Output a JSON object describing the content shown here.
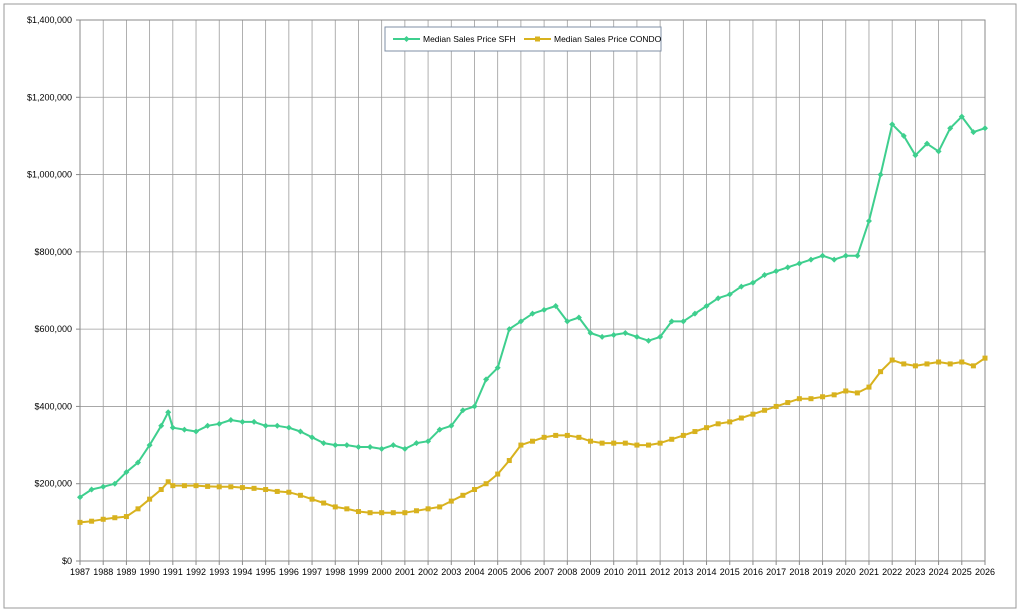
{
  "chart_data": {
    "type": "line",
    "title": "",
    "xlabel": "",
    "ylabel": "",
    "ylim": [
      0,
      1400000
    ],
    "xlim": [
      1987,
      2026
    ],
    "grid": true,
    "legend_position": "top-center",
    "y_ticks": [
      "$0",
      "$200,000",
      "$400,000",
      "$600,000",
      "$800,000",
      "$1,000,000",
      "$1,200,000",
      "$1,400,000"
    ],
    "x_ticks": [
      "1987",
      "1988",
      "1989",
      "1990",
      "1991",
      "1992",
      "1993",
      "1994",
      "1995",
      "1996",
      "1997",
      "1998",
      "1999",
      "2000",
      "2001",
      "2002",
      "2003",
      "2004",
      "2005",
      "2006",
      "2007",
      "2008",
      "2009",
      "2010",
      "2011",
      "2012",
      "2013",
      "2014",
      "2015",
      "2016",
      "2017",
      "2018",
      "2019",
      "2020",
      "2021",
      "2022",
      "2023",
      "2024",
      "2025",
      "2026"
    ],
    "series": [
      {
        "name": "Median Sales Price SFH",
        "color": "#3ecf8e",
        "marker": "diamond",
        "x": [
          1987,
          1987.5,
          1988,
          1988.5,
          1989,
          1989.5,
          1990,
          1990.5,
          1990.8,
          1991,
          1991.5,
          1992,
          1992.5,
          1993,
          1993.5,
          1994,
          1994.5,
          1995,
          1995.5,
          1996,
          1996.5,
          1997,
          1997.5,
          1998,
          1998.5,
          1999,
          1999.5,
          2000,
          2000.5,
          2001,
          2001.5,
          2002,
          2002.5,
          2003,
          2003.5,
          2004,
          2004.5,
          2005,
          2005.5,
          2006,
          2006.5,
          2007,
          2007.5,
          2008,
          2008.5,
          2009,
          2009.5,
          2010,
          2010.5,
          2011,
          2011.5,
          2012,
          2012.5,
          2013,
          2013.5,
          2014,
          2014.5,
          2015,
          2015.5,
          2016,
          2016.5,
          2017,
          2017.5,
          2018,
          2018.5,
          2019,
          2019.5,
          2020,
          2020.5,
          2021,
          2021.5,
          2022,
          2022.5,
          2023,
          2023.5,
          2024,
          2024.5,
          2025,
          2025.5,
          2026
        ],
        "values": [
          165000,
          185000,
          192000,
          200000,
          230000,
          255000,
          300000,
          350000,
          385000,
          345000,
          340000,
          335000,
          350000,
          355000,
          365000,
          360000,
          360000,
          350000,
          350000,
          345000,
          335000,
          320000,
          305000,
          300000,
          300000,
          295000,
          295000,
          290000,
          300000,
          290000,
          305000,
          310000,
          340000,
          350000,
          390000,
          400000,
          470000,
          500000,
          600000,
          620000,
          640000,
          650000,
          660000,
          620000,
          630000,
          590000,
          580000,
          585000,
          590000,
          580000,
          570000,
          580000,
          620000,
          620000,
          640000,
          660000,
          680000,
          690000,
          710000,
          720000,
          740000,
          750000,
          760000,
          770000,
          780000,
          790000,
          780000,
          790000,
          790000,
          880000,
          1000000,
          1130000,
          1100000,
          1050000,
          1080000,
          1060000,
          1120000,
          1150000,
          1110000,
          1120000
        ]
      },
      {
        "name": "Median Sales Price CONDO",
        "color": "#d8b21e",
        "marker": "square",
        "x": [
          1987,
          1987.5,
          1988,
          1988.5,
          1989,
          1989.5,
          1990,
          1990.5,
          1990.8,
          1991,
          1991.5,
          1992,
          1992.5,
          1993,
          1993.5,
          1994,
          1994.5,
          1995,
          1995.5,
          1996,
          1996.5,
          1997,
          1997.5,
          1998,
          1998.5,
          1999,
          1999.5,
          2000,
          2000.5,
          2001,
          2001.5,
          2002,
          2002.5,
          2003,
          2003.5,
          2004,
          2004.5,
          2005,
          2005.5,
          2006,
          2006.5,
          2007,
          2007.5,
          2008,
          2008.5,
          2009,
          2009.5,
          2010,
          2010.5,
          2011,
          2011.5,
          2012,
          2012.5,
          2013,
          2013.5,
          2014,
          2014.5,
          2015,
          2015.5,
          2016,
          2016.5,
          2017,
          2017.5,
          2018,
          2018.5,
          2019,
          2019.5,
          2020,
          2020.5,
          2021,
          2021.5,
          2022,
          2022.5,
          2023,
          2023.5,
          2024,
          2024.5,
          2025,
          2025.5,
          2026
        ],
        "values": [
          100000,
          103000,
          108000,
          112000,
          115000,
          135000,
          160000,
          185000,
          205000,
          195000,
          195000,
          195000,
          193000,
          192000,
          192000,
          190000,
          188000,
          185000,
          180000,
          178000,
          170000,
          160000,
          150000,
          140000,
          135000,
          128000,
          125000,
          125000,
          125000,
          125000,
          130000,
          135000,
          140000,
          155000,
          170000,
          185000,
          200000,
          225000,
          260000,
          300000,
          310000,
          320000,
          325000,
          325000,
          320000,
          310000,
          305000,
          305000,
          305000,
          300000,
          300000,
          305000,
          315000,
          325000,
          335000,
          345000,
          355000,
          360000,
          370000,
          380000,
          390000,
          400000,
          410000,
          420000,
          420000,
          425000,
          430000,
          440000,
          435000,
          450000,
          490000,
          520000,
          510000,
          505000,
          510000,
          515000,
          510000,
          515000,
          505000,
          525000
        ]
      }
    ]
  }
}
